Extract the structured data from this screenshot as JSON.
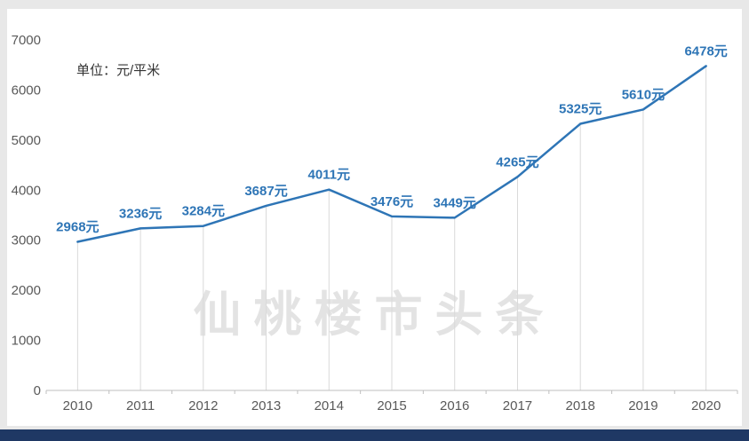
{
  "page": {
    "unit_label": "单位：元/平米",
    "watermark": "仙桃楼市头条"
  },
  "colors": {
    "line": "#2e75b6",
    "data_label": "#2e75b6",
    "axis": "#bfbfbf",
    "drop_line": "#d9d9d9",
    "tick_text": "#595959",
    "bottom_bar": "#1f3864",
    "page_bg": "#e8e8e8"
  },
  "chart_data": {
    "type": "line",
    "title": "",
    "unit": "元/平米",
    "categories": [
      "2010",
      "2011",
      "2012",
      "2013",
      "2014",
      "2015",
      "2016",
      "2017",
      "2018",
      "2019",
      "2020"
    ],
    "values": [
      2968,
      3236,
      3284,
      3687,
      4011,
      3476,
      3449,
      4265,
      5325,
      5610,
      6478
    ],
    "data_labels": [
      "2968元",
      "3236元",
      "3284元",
      "3687元",
      "4011元",
      "3476元",
      "3449元",
      "4265元",
      "5325元",
      "5610元",
      "6478元"
    ],
    "ylim": [
      0,
      7000
    ],
    "ytick_step": 1000,
    "yticks": [
      "0",
      "1000",
      "2000",
      "3000",
      "4000",
      "5000",
      "6000",
      "7000"
    ],
    "grid": "vertical-drop-lines",
    "legend": "none",
    "watermark": "仙桃楼市头条"
  }
}
